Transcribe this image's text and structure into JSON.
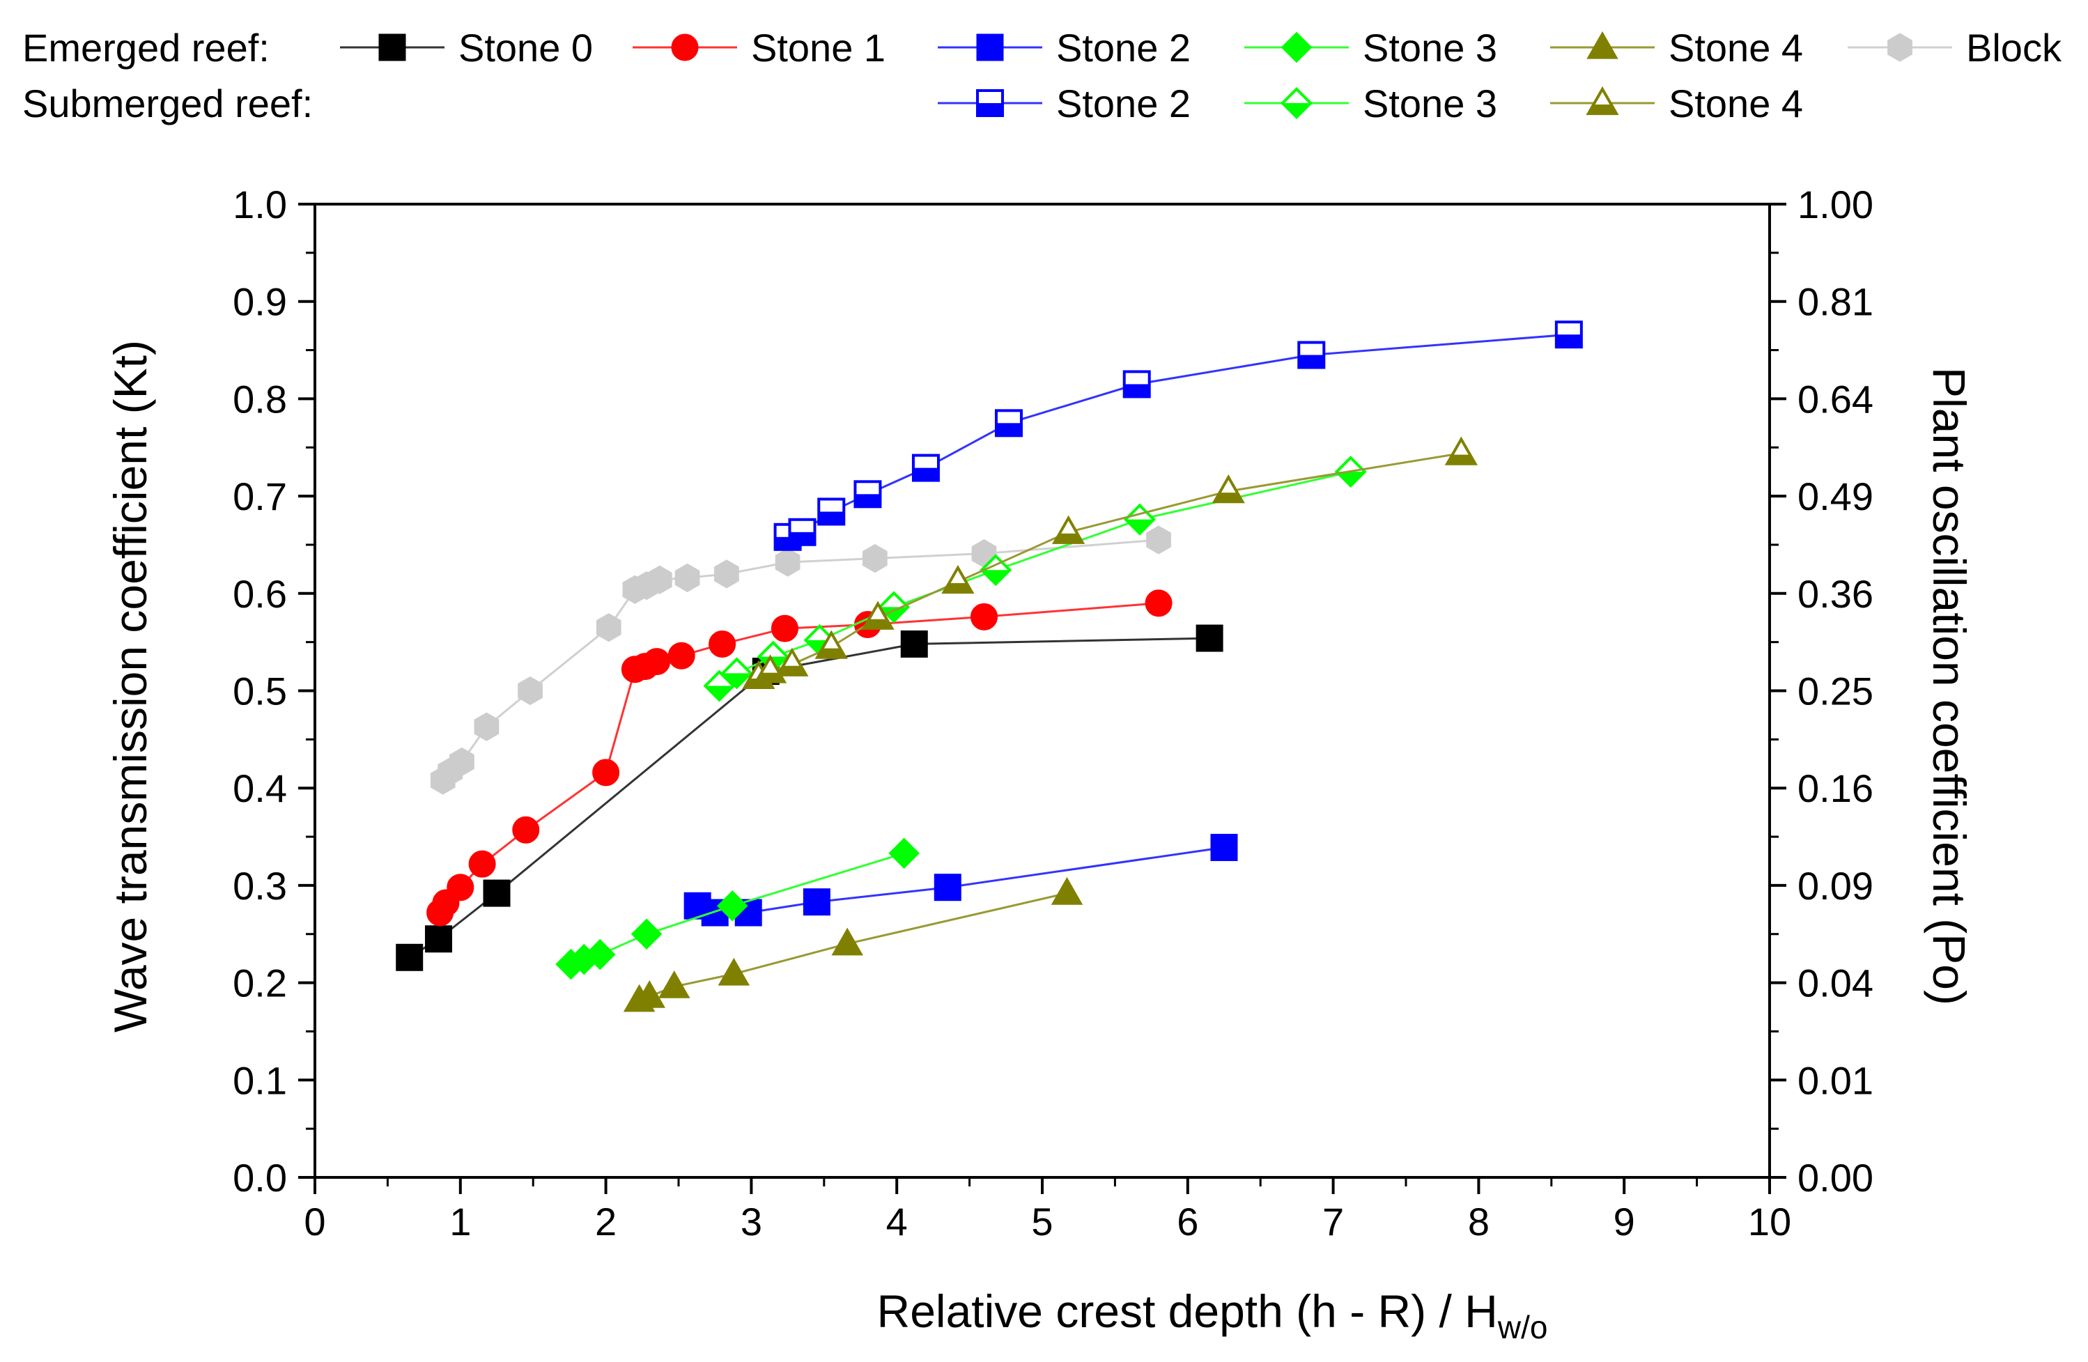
{
  "chart_data": {
    "type": "scatter",
    "xlabel": "Relative crest depth  (h - R) / H",
    "xlabel_sub": "w/o",
    "ylabel": "Wave transmission coefficient (Kt)",
    "y2label": "Plant oscillation coefficient (Po)",
    "xlim": [
      0,
      10
    ],
    "ylim": [
      0,
      1
    ],
    "x_ticks": [
      "0",
      "1",
      "2",
      "3",
      "4",
      "5",
      "6",
      "7",
      "8",
      "9",
      "10"
    ],
    "y_ticks": [
      "0.0",
      "0.1",
      "0.2",
      "0.3",
      "0.4",
      "0.5",
      "0.6",
      "0.7",
      "0.8",
      "0.9",
      "1.0"
    ],
    "y2_ticks": [
      "0.00",
      "0.01",
      "0.04",
      "0.09",
      "0.16",
      "0.25",
      "0.36",
      "0.49",
      "0.64",
      "0.81",
      "1.00"
    ],
    "legend": {
      "emerged_label": "Emerged reef:",
      "submerged_label": "Submerged reef:"
    },
    "series": [
      {
        "name": "Stone 0",
        "group": "emerged",
        "marker": "square",
        "filled": true,
        "color": "#000000",
        "line_color": "#333333",
        "x": [
          0.65,
          0.85,
          1.25,
          3.1,
          4.12,
          6.15
        ],
        "y": [
          0.226,
          0.245,
          0.292,
          0.52,
          0.548,
          0.554
        ]
      },
      {
        "name": "Stone 1",
        "group": "emerged",
        "marker": "circle",
        "filled": true,
        "color": "#ff0000",
        "line_color": "#ff3333",
        "x": [
          0.86,
          0.9,
          1.0,
          1.15,
          1.45,
          2.0,
          2.2,
          2.27,
          2.35,
          2.52,
          2.8,
          3.23,
          3.8,
          4.6,
          5.8
        ],
        "y": [
          0.272,
          0.282,
          0.298,
          0.322,
          0.357,
          0.416,
          0.522,
          0.525,
          0.53,
          0.536,
          0.548,
          0.564,
          0.568,
          0.576,
          0.59
        ]
      },
      {
        "name": "Stone 2",
        "group": "emerged",
        "marker": "square",
        "filled": true,
        "color": "#0000ff",
        "line_color": "#3333ff",
        "x": [
          2.63,
          2.75,
          2.98,
          3.45,
          4.35,
          6.25
        ],
        "y": [
          0.279,
          0.272,
          0.272,
          0.283,
          0.298,
          0.339
        ]
      },
      {
        "name": "Stone 3",
        "group": "emerged",
        "marker": "diamond",
        "filled": true,
        "color": "#00ff00",
        "line_color": "#33ff33",
        "x": [
          1.76,
          1.85,
          1.96,
          2.28,
          2.87,
          4.05
        ],
        "y": [
          0.219,
          0.224,
          0.229,
          0.25,
          0.279,
          0.333
        ]
      },
      {
        "name": "Stone 4",
        "group": "emerged",
        "marker": "triangle",
        "filled": true,
        "color": "#808000",
        "line_color": "#999933",
        "x": [
          2.23,
          2.3,
          2.47,
          2.88,
          3.66,
          5.17
        ],
        "y": [
          0.182,
          0.186,
          0.196,
          0.209,
          0.24,
          0.292
        ]
      },
      {
        "name": "Block",
        "group": "emerged",
        "marker": "hexagon",
        "filled": true,
        "color": "#cccccc",
        "line_color": "#d0d0d0",
        "x": [
          0.88,
          0.93,
          1.01,
          1.18,
          1.48,
          2.02,
          2.2,
          2.28,
          2.37,
          2.56,
          2.83,
          3.25,
          3.85,
          4.6,
          5.8
        ],
        "y": [
          0.408,
          0.417,
          0.427,
          0.463,
          0.5,
          0.565,
          0.604,
          0.608,
          0.614,
          0.616,
          0.62,
          0.632,
          0.636,
          0.641,
          0.655
        ]
      },
      {
        "name": "Stone 2",
        "group": "submerged",
        "marker": "square",
        "filled": false,
        "color": "#0000ff",
        "line_color": "#3333ff",
        "x": [
          3.25,
          3.35,
          3.55,
          3.8,
          4.2,
          4.77,
          5.65,
          6.85,
          8.62
        ],
        "y": [
          0.658,
          0.663,
          0.684,
          0.702,
          0.729,
          0.775,
          0.815,
          0.845,
          0.866
        ]
      },
      {
        "name": "Stone 3",
        "group": "submerged",
        "marker": "diamond",
        "filled": false,
        "color": "#00ff00",
        "line_color": "#33ff33",
        "x": [
          2.78,
          2.9,
          3.15,
          3.47,
          3.98,
          4.68,
          5.67,
          7.12
        ],
        "y": [
          0.505,
          0.518,
          0.535,
          0.552,
          0.586,
          0.624,
          0.676,
          0.725
        ]
      },
      {
        "name": "Stone 4",
        "group": "submerged",
        "marker": "triangle",
        "filled": false,
        "color": "#808000",
        "line_color": "#999933",
        "x": [
          3.05,
          3.13,
          3.28,
          3.55,
          3.87,
          4.42,
          5.18,
          6.28,
          7.88
        ],
        "y": [
          0.514,
          0.52,
          0.527,
          0.545,
          0.575,
          0.612,
          0.663,
          0.705,
          0.744
        ]
      }
    ]
  }
}
